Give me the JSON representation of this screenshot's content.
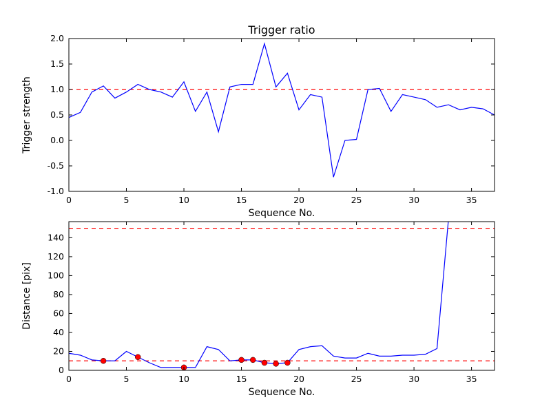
{
  "figure": {
    "background": "#ffffff",
    "line_color": "#0000ff",
    "threshold_color": "#ff0000",
    "marker_color": "#ff0000",
    "frame_color": "#000000"
  },
  "chart_data": [
    {
      "type": "line",
      "title": "Trigger ratio",
      "xlabel": "Sequence No.",
      "ylabel": "Trigger strength",
      "xlim": [
        0,
        37
      ],
      "ylim": [
        -1.0,
        2.0
      ],
      "grid": false,
      "legend": "none",
      "xticks": [
        0,
        5,
        10,
        15,
        20,
        25,
        30,
        35
      ],
      "xtick_labels": [
        "0",
        "5",
        "10",
        "15",
        "20",
        "25",
        "30",
        "35"
      ],
      "yticks": [
        -1.0,
        -0.5,
        0.0,
        0.5,
        1.0,
        1.5,
        2.0
      ],
      "ytick_labels": [
        "-1.0",
        "-0.5",
        "0.0",
        "0.5",
        "1.0",
        "1.5",
        "2.0"
      ],
      "threshold_lines": [
        1.0
      ],
      "x": [
        0,
        1,
        2,
        3,
        4,
        5,
        6,
        7,
        8,
        9,
        10,
        11,
        12,
        13,
        14,
        15,
        16,
        17,
        18,
        19,
        20,
        21,
        22,
        23,
        24,
        25,
        26,
        27,
        28,
        29,
        30,
        31,
        32,
        33,
        34,
        35,
        36,
        37
      ],
      "y": [
        0.45,
        0.55,
        0.95,
        1.07,
        0.83,
        0.95,
        1.1,
        1.0,
        0.95,
        0.85,
        1.15,
        0.57,
        0.95,
        0.17,
        1.05,
        1.1,
        1.1,
        1.9,
        1.05,
        1.32,
        0.6,
        0.9,
        0.85,
        -0.72,
        0.0,
        0.02,
        1.0,
        1.02,
        0.57,
        0.9,
        0.85,
        0.8,
        0.65,
        0.7,
        0.6,
        0.65,
        0.62,
        0.5
      ]
    },
    {
      "type": "line",
      "title": "",
      "xlabel": "Sequence No.",
      "ylabel": "Distance [pix]",
      "xlim": [
        0,
        37
      ],
      "ylim": [
        0,
        157
      ],
      "grid": false,
      "legend": "none",
      "xticks": [
        0,
        5,
        10,
        15,
        20,
        25,
        30,
        35
      ],
      "xtick_labels": [
        "0",
        "5",
        "10",
        "15",
        "20",
        "25",
        "30",
        "35"
      ],
      "yticks": [
        0,
        20,
        40,
        60,
        80,
        100,
        120,
        140
      ],
      "ytick_labels": [
        "0",
        "20",
        "40",
        "60",
        "80",
        "100",
        "120",
        "140"
      ],
      "threshold_lines": [
        150,
        10
      ],
      "x": [
        0,
        1,
        2,
        3,
        4,
        5,
        6,
        7,
        8,
        9,
        10,
        11,
        12,
        13,
        14,
        15,
        16,
        17,
        18,
        19,
        20,
        21,
        22,
        23,
        24,
        25,
        26,
        27,
        28,
        29,
        30,
        31,
        32,
        33,
        34,
        35,
        36,
        37
      ],
      "y": [
        18,
        16,
        11,
        10,
        10,
        20,
        14,
        8,
        3,
        3,
        3,
        3,
        25,
        22,
        10,
        11,
        11,
        8,
        7,
        8,
        22,
        25,
        26,
        15,
        13,
        13,
        18,
        15,
        15,
        16,
        16,
        17,
        23,
        160,
        160,
        160,
        160,
        160
      ],
      "markers": {
        "x": [
          3,
          6,
          10,
          15,
          16,
          17,
          18,
          19
        ],
        "y": [
          10,
          14,
          3,
          11,
          11,
          8,
          7,
          8
        ]
      }
    }
  ]
}
